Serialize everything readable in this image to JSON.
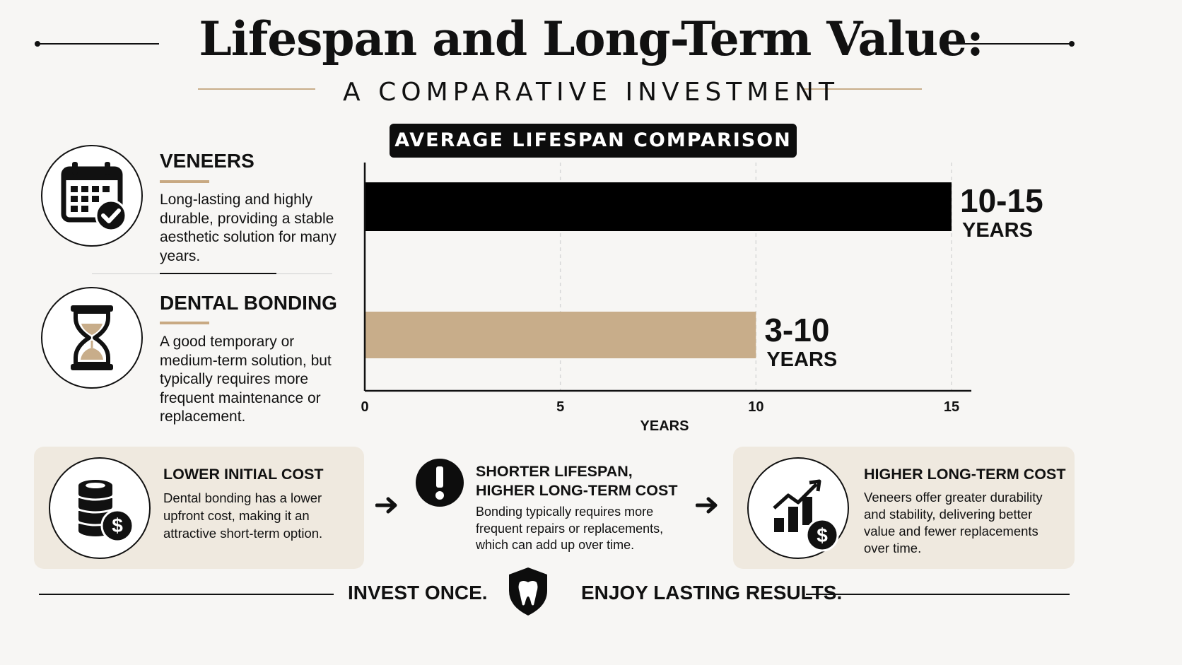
{
  "header": {
    "title": "Lifespan and Long-Term Value:",
    "subtitle": "A COMPARATIVE INVESTMENT",
    "chart_badge": "AVERAGE LIFESPAN COMPARISON"
  },
  "options": [
    {
      "name": "VENEERS",
      "description": "Long-lasting and highly durable, providing a stable aesthetic solution for many years.",
      "icon": "calendar-check-icon"
    },
    {
      "name": "DENTAL BONDING",
      "description": "A good temporary or medium-term solution, but typically requires more frequent maintenance or replacement.",
      "icon": "hourglass-icon"
    }
  ],
  "chart_data": {
    "type": "bar",
    "orientation": "horizontal",
    "title": "AVERAGE LIFESPAN COMPARISON",
    "xlabel": "YEARS",
    "xlim": [
      0,
      15
    ],
    "xticks": [
      0,
      5,
      10,
      15
    ],
    "grid": true,
    "bars": [
      {
        "value_low": 10,
        "value_high": 15,
        "label_value": "10-15",
        "label_unit": "YEARS",
        "color": "#000000"
      },
      {
        "value_low": 3,
        "value_high": 10,
        "label_value": "3-10",
        "label_unit": "YEARS",
        "color": "#c8ad8a"
      }
    ]
  },
  "cards": [
    {
      "title": "LOWER INITIAL COST",
      "text": "Dental bonding has a lower upfront cost, making it an attractive short-term option.",
      "icon": "coins-dollar-icon"
    },
    {
      "title": "SHORTER LIFESPAN, HIGHER LONG-TERM COST",
      "text": "Bonding typically requires more frequent repairs or replacements, which can add up over time.",
      "icon": "exclamation-icon"
    },
    {
      "title": "HIGHER LONG-TERM COST",
      "text": "Veneers offer greater durability and stability, delivering better value and fewer replacements over time.",
      "icon": "growth-chart-dollar-icon"
    }
  ],
  "footer": {
    "left": "INVEST ONCE.",
    "right": "ENJOY LASTING RESULTS.",
    "icon": "tooth-shield-icon"
  },
  "colors": {
    "accent": "#c8ad8a",
    "ink": "#111111",
    "card_bg": "#efe9df",
    "background": "#f7f6f4"
  }
}
